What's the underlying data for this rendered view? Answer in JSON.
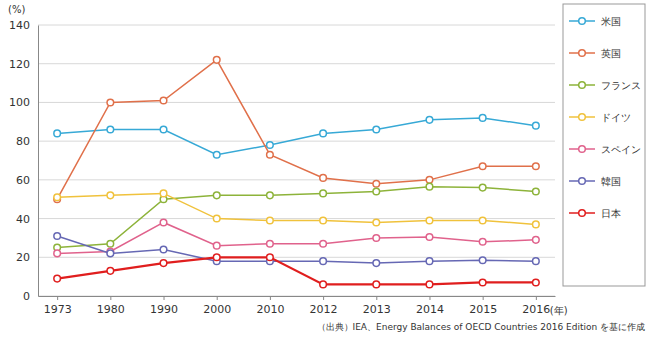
{
  "chart_data": {
    "type": "line",
    "y_label": "(%)",
    "x_label": "(年)",
    "source": "（出典）IEA、Energy Balances of OECD Countries 2016 Edition を基に作成",
    "categories": [
      "1973",
      "1980",
      "1990",
      "2000",
      "2010",
      "2012",
      "2013",
      "2014",
      "2015",
      "2016"
    ],
    "series": [
      {
        "name": "米国",
        "color": "#37a9d6",
        "values": [
          84,
          86,
          86,
          73,
          78,
          84,
          86,
          91,
          92,
          88
        ]
      },
      {
        "name": "英国",
        "color": "#e0704a",
        "values": [
          50,
          100,
          101,
          122,
          73,
          61,
          58,
          60,
          67,
          67
        ]
      },
      {
        "name": "フランス",
        "color": "#8db33a",
        "values": [
          25,
          27,
          50,
          52,
          52,
          53,
          54,
          56.5,
          56,
          54
        ]
      },
      {
        "name": "ドイツ",
        "color": "#f0c23c",
        "values": [
          51,
          52,
          53,
          40,
          39,
          39,
          38,
          39,
          39,
          37
        ]
      },
      {
        "name": "スペイン",
        "color": "#e0628c",
        "values": [
          22,
          23,
          38,
          26,
          27,
          27,
          30,
          30.5,
          28,
          29
        ]
      },
      {
        "name": "韓国",
        "color": "#6668b4",
        "values": [
          31,
          22,
          24,
          18,
          18,
          18,
          17,
          18,
          18.5,
          18
        ]
      },
      {
        "name": "日本",
        "color": "#e01e1e",
        "values": [
          9,
          13,
          17,
          20,
          20,
          6,
          6,
          6,
          7,
          7
        ]
      }
    ],
    "ylim": [
      0,
      140
    ],
    "yticks": [
      0,
      20,
      40,
      60,
      80,
      100,
      120,
      140
    ],
    "grid": true,
    "legend": "right",
    "marker": "circle"
  }
}
